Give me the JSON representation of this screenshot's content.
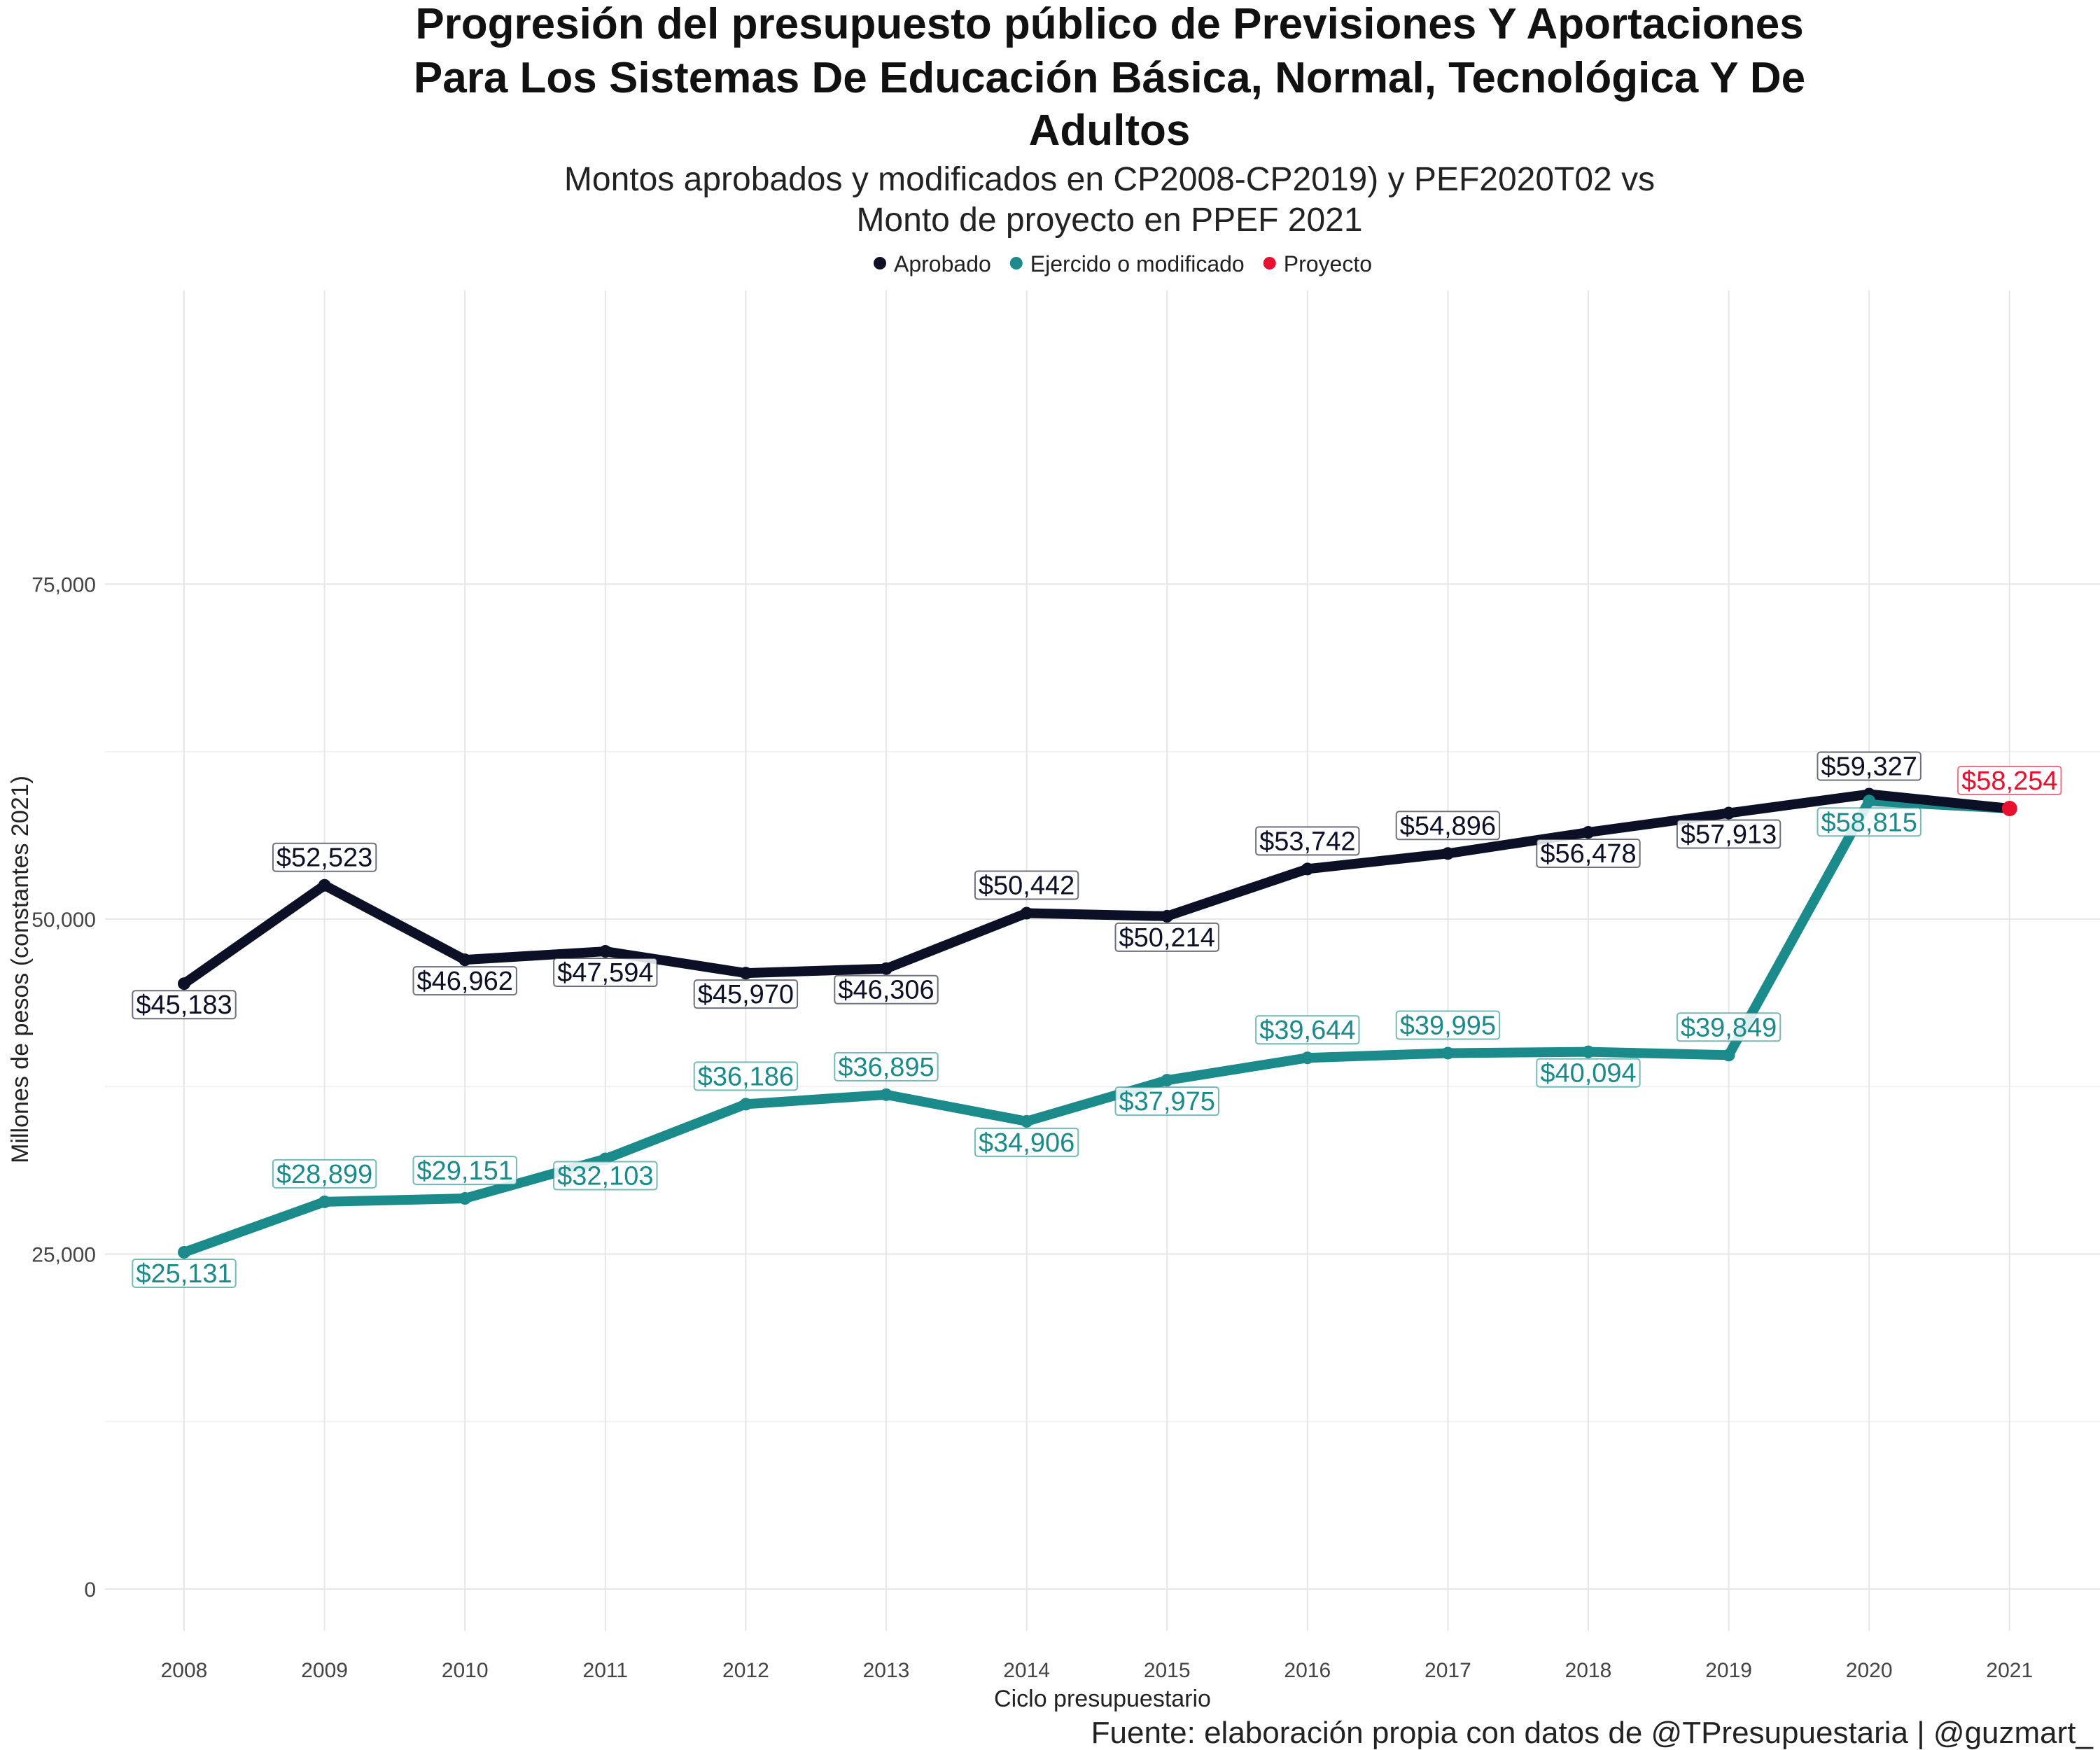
{
  "chart_data": {
    "type": "line",
    "title": [
      "Progresión del presupuesto público de Previsiones Y Aportaciones",
      "Para Los Sistemas De Educación Básica, Normal, Tecnológica Y De",
      "Adultos"
    ],
    "subtitle": [
      "Montos aprobados y modificados en CP2008-CP2019) y PEF2020T02 vs",
      "Monto de proyecto en PPEF 2021"
    ],
    "xlabel": "Ciclo presupuestario",
    "ylabel": "Millones de pesos (constantes 2021)",
    "caption": "Fuente: elaboración propia con datos de @TPresupuestaria | @guzmart_",
    "x": [
      "2008",
      "2009",
      "2010",
      "2011",
      "2012",
      "2013",
      "2014",
      "2015",
      "2016",
      "2017",
      "2018",
      "2019",
      "2020",
      "2021"
    ],
    "ylim": [
      0,
      87000
    ],
    "yticks": [
      0,
      25000,
      50000,
      75000
    ],
    "ytick_labels": [
      "0",
      "25,000",
      "50,000",
      "75,000"
    ],
    "grid": true,
    "legend_position": "top",
    "series": [
      {
        "name": "Aprobado",
        "color": "#0b1026",
        "x": [
          "2008",
          "2009",
          "2010",
          "2011",
          "2012",
          "2013",
          "2014",
          "2015",
          "2016",
          "2017",
          "2018",
          "2019",
          "2020"
        ],
        "values": [
          45183,
          52523,
          46962,
          47594,
          45970,
          46306,
          50442,
          50214,
          53742,
          54896,
          56478,
          57913,
          59327
        ],
        "labels": [
          "$45,183",
          "$52,523",
          "$46,962",
          "$47,594",
          "$45,970",
          "$46,306",
          "$50,442",
          "$50,214",
          "$53,742",
          "$54,896",
          "$56,478",
          "$57,913",
          "$59,327"
        ]
      },
      {
        "name": "Ejercido o modificado",
        "color": "#1b8a8a",
        "x": [
          "2008",
          "2009",
          "2010",
          "2011",
          "2012",
          "2013",
          "2014",
          "2015",
          "2016",
          "2017",
          "2018",
          "2019",
          "2020"
        ],
        "values": [
          25131,
          28899,
          29151,
          32103,
          36186,
          36895,
          34906,
          37975,
          39644,
          39995,
          40094,
          39849,
          58815
        ],
        "labels": [
          "$25,131",
          "$28,899",
          "$29,151",
          "$32,103",
          "$36,186",
          "$36,895",
          "$34,906",
          "$37,975",
          "$39,644",
          "$39,995",
          "$40,094",
          "$39,849",
          "$58,815"
        ]
      },
      {
        "name": "Proyecto",
        "color": "#e8102e",
        "x": [
          "2021"
        ],
        "values": [
          58254
        ],
        "labels": [
          "$58,254"
        ]
      }
    ]
  }
}
